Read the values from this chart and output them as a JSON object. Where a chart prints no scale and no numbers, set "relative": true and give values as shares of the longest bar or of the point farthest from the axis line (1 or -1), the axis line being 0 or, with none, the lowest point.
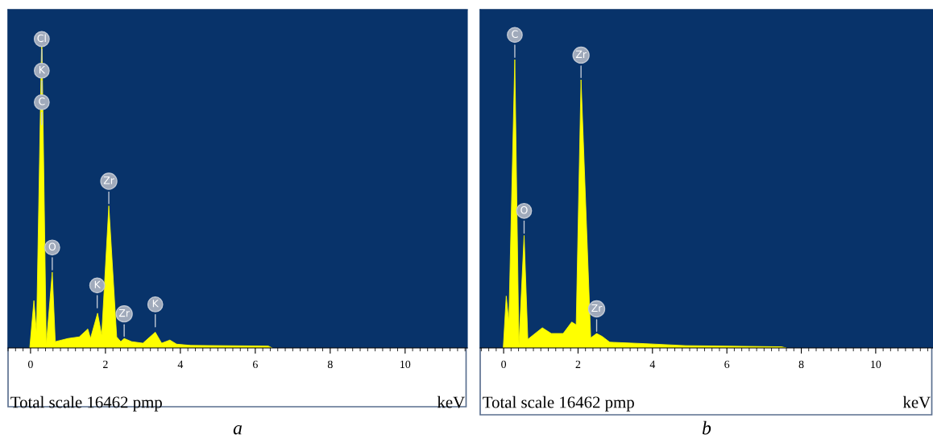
{
  "chart_data": [
    {
      "type": "area",
      "title": "a",
      "xlabel": "keV",
      "relative": true,
      "xlim": [
        -0.6,
        11.66
      ],
      "xticks": [
        0,
        2,
        4,
        6,
        8,
        10
      ],
      "grid": false,
      "tick_labels": "x",
      "x": [
        -0.02,
        0.09,
        0.16,
        0.3,
        0.42,
        0.58,
        0.66,
        1.0,
        1.3,
        1.53,
        1.6,
        1.79,
        1.9,
        2.09,
        2.3,
        2.41,
        2.5,
        2.7,
        3.0,
        3.33,
        3.5,
        3.72,
        3.9,
        4.28,
        6.35,
        6.45
      ],
      "series": [
        {
          "color": "#ffff00",
          "values": [
            0,
            0.15,
            0.05,
            1.0,
            0.01,
            0.24,
            0.02,
            0.03,
            0.035,
            0.06,
            0.03,
            0.11,
            0.04,
            0.45,
            0.035,
            0.02,
            0.03,
            0.02,
            0.015,
            0.05,
            0.015,
            0.025,
            0.012,
            0.008,
            0.006,
            0
          ]
        }
      ],
      "annotations": [
        {
          "text": "Cl",
          "x": 0.3,
          "y": 0.9
        },
        {
          "text": "K",
          "x": 0.3,
          "y": 0.8
        },
        {
          "text": "C",
          "x": 0.3,
          "y": 0.7
        },
        {
          "text": "O",
          "x": 0.58,
          "y": 0.24
        },
        {
          "text": "K",
          "x": 1.78,
          "y": 0.12
        },
        {
          "text": "Zr",
          "x": 2.09,
          "y": 0.45
        },
        {
          "text": "Zr",
          "x": 2.5,
          "y": 0.03
        },
        {
          "text": "K",
          "x": 3.33,
          "y": 0.06
        },
        "Total scale 16462 pmp"
      ]
    },
    {
      "type": "area",
      "title": "b",
      "xlabel": "keV",
      "relative": true,
      "xlim": [
        -0.63,
        11.54
      ],
      "xticks": [
        0,
        2,
        4,
        6,
        8,
        10
      ],
      "grid": false,
      "tick_labels": "x",
      "x": [
        -0.01,
        0.07,
        0.14,
        0.3,
        0.41,
        0.55,
        0.65,
        1.04,
        1.28,
        1.6,
        1.83,
        1.95,
        2.08,
        2.34,
        2.5,
        2.65,
        2.85,
        3.79,
        4.89,
        7.47,
        7.6
      ],
      "series": [
        {
          "color": "#ffff00",
          "values": [
            0,
            0.18,
            0.09,
            1.0,
            0.01,
            0.39,
            0.03,
            0.07,
            0.05,
            0.05,
            0.09,
            0.08,
            0.93,
            0.035,
            0.05,
            0.04,
            0.02,
            0.015,
            0.008,
            0.004,
            0
          ]
        }
      ],
      "annotations": [
        {
          "text": "C",
          "x": 0.3,
          "y": 1.0
        },
        {
          "text": "O",
          "x": 0.55,
          "y": 0.39
        },
        {
          "text": "Zr",
          "x": 2.08,
          "y": 0.93
        },
        {
          "text": "Zr",
          "x": 2.5,
          "y": 0.05
        },
        "Total scale 16462 pmp"
      ]
    }
  ]
}
